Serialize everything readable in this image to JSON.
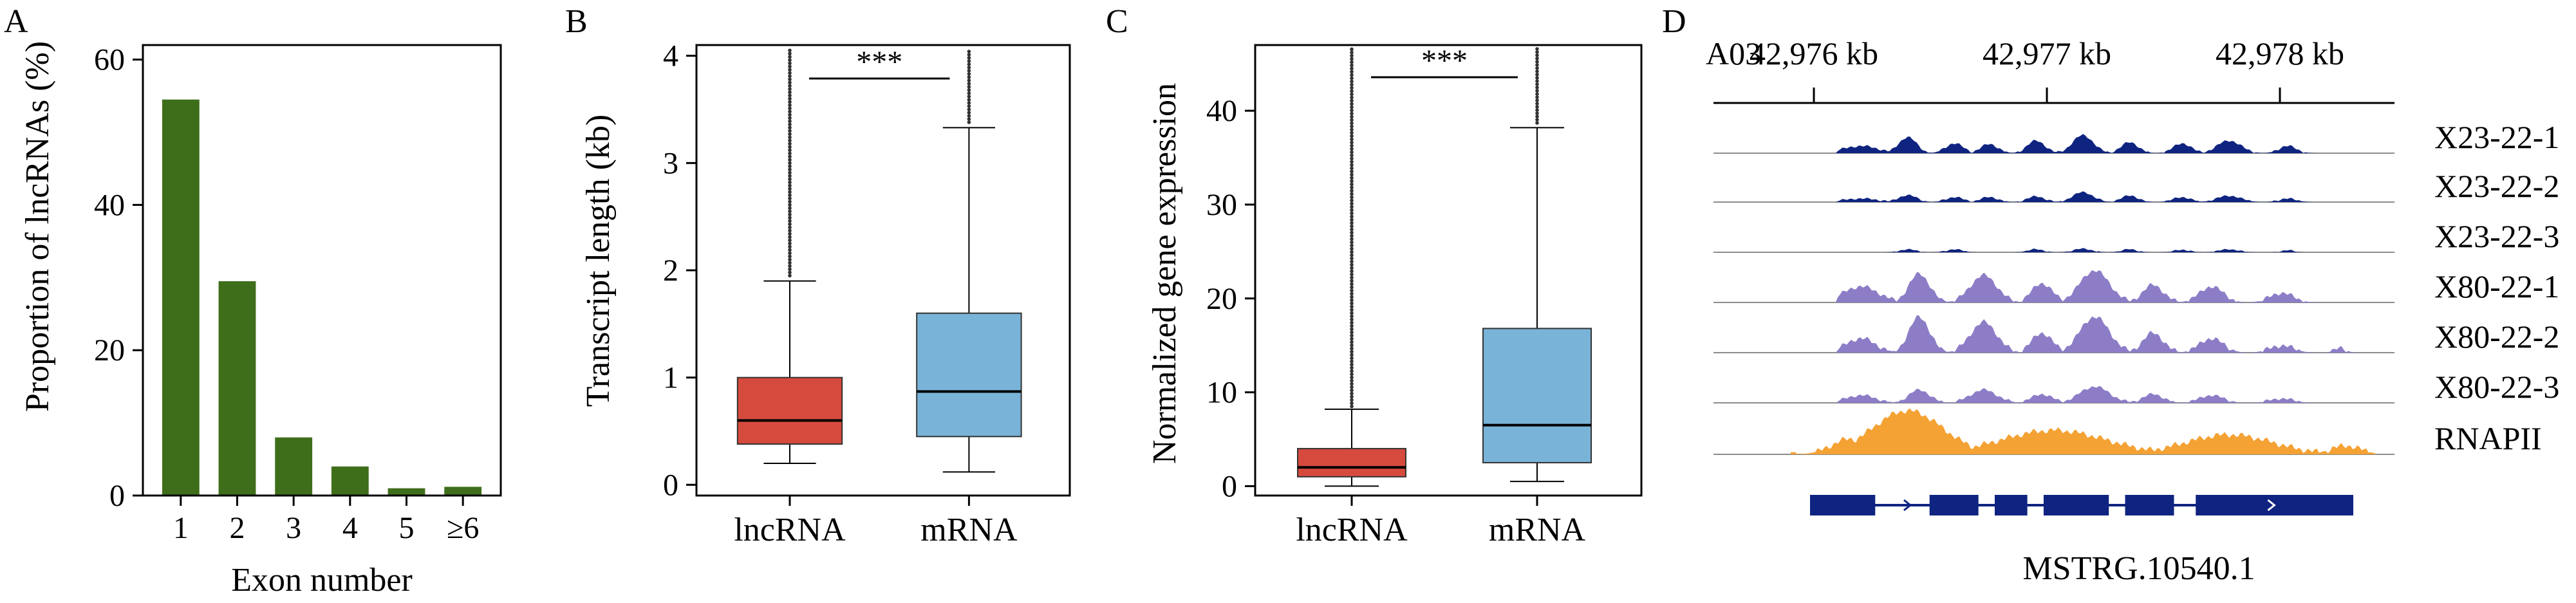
{
  "colors": {
    "bar_green": "#3f6e1b",
    "box_lncrna": "#d64a3d",
    "box_mrna": "#79b4d8",
    "track_dark": "#0f2480",
    "track_light": "#8d7dc7",
    "track_orange": "#f4a234",
    "gene_blue": "#0f2480",
    "baseline": "#8c8c8c"
  },
  "chart_data": [
    {
      "panel": "A",
      "type": "bar",
      "categories": [
        "1",
        "2",
        "3",
        "4",
        "5",
        "≥6"
      ],
      "values": [
        54.5,
        29.5,
        8.0,
        4.0,
        1.0,
        1.2
      ],
      "xlabel": "Exon number",
      "ylabel": "Proportion of lncRNAs (%)",
      "ylim": [
        0,
        62
      ],
      "yticks": [
        0,
        20,
        40,
        60
      ],
      "grid": false
    },
    {
      "panel": "B",
      "type": "box",
      "categories": [
        "lncRNA",
        "mRNA"
      ],
      "ylabel": "Transcript length (kb)",
      "ylim": [
        -0.1,
        4.1
      ],
      "yticks": [
        0,
        1,
        2,
        3,
        4
      ],
      "series": [
        {
          "category": "lncRNA",
          "whisker_low": 0.2,
          "q1": 0.38,
          "median": 0.6,
          "q3": 1.0,
          "whisker_high": 1.9,
          "outliers_from": 1.95,
          "outliers_to": 4.1,
          "color": "#d64a3d"
        },
        {
          "category": "mRNA",
          "whisker_low": 0.12,
          "q1": 0.45,
          "median": 0.87,
          "q3": 1.6,
          "whisker_high": 3.33,
          "outliers_from": 3.38,
          "outliers_to": 4.12,
          "color": "#79b4d8"
        }
      ],
      "significance": "***",
      "grid": false
    },
    {
      "panel": "C",
      "type": "box",
      "categories": [
        "lncRNA",
        "mRNA"
      ],
      "ylabel": "Normalized gene expression",
      "ylim": [
        -1,
        47
      ],
      "yticks": [
        0,
        10,
        20,
        30,
        40
      ],
      "series": [
        {
          "category": "lncRNA",
          "whisker_low": 0.0,
          "q1": 1.0,
          "median": 2.0,
          "q3": 4.0,
          "whisker_high": 8.2,
          "outliers_from": 8.5,
          "outliers_to": 47,
          "color": "#d64a3d"
        },
        {
          "category": "mRNA",
          "whisker_low": 0.5,
          "q1": 2.5,
          "median": 6.5,
          "q3": 16.8,
          "whisker_high": 38.2,
          "outliers_from": 38.7,
          "outliers_to": 47,
          "color": "#79b4d8"
        }
      ],
      "significance": "***",
      "grid": false
    },
    {
      "panel": "D",
      "type": "area",
      "chromosome": "A03",
      "coordinate_ticks": [
        "42,976 kb",
        "42,977 kb",
        "42,978 kb"
      ],
      "tracks": [
        {
          "name": "X23-22-1",
          "color": "#0f2480",
          "peaks": [
            [
              0.12,
              0.4,
              0.06
            ],
            [
              0.2,
              0.9,
              0.03
            ],
            [
              0.28,
              0.55,
              0.03
            ],
            [
              0.34,
              0.5,
              0.03
            ],
            [
              0.42,
              0.7,
              0.03
            ],
            [
              0.5,
              1.0,
              0.035
            ],
            [
              0.58,
              0.6,
              0.03
            ],
            [
              0.67,
              0.55,
              0.03
            ],
            [
              0.75,
              0.7,
              0.04
            ],
            [
              0.85,
              0.4,
              0.03
            ]
          ]
        },
        {
          "name": "X23-22-2",
          "color": "#0f2480",
          "peaks": [
            [
              0.12,
              0.25,
              0.06
            ],
            [
              0.2,
              0.5,
              0.03
            ],
            [
              0.28,
              0.35,
              0.03
            ],
            [
              0.34,
              0.35,
              0.03
            ],
            [
              0.42,
              0.4,
              0.03
            ],
            [
              0.5,
              0.7,
              0.035
            ],
            [
              0.58,
              0.45,
              0.03
            ],
            [
              0.67,
              0.35,
              0.03
            ],
            [
              0.75,
              0.45,
              0.04
            ],
            [
              0.85,
              0.25,
              0.03
            ]
          ]
        },
        {
          "name": "X23-22-3",
          "color": "#0f2480",
          "peaks": [
            [
              0.2,
              0.3,
              0.025
            ],
            [
              0.28,
              0.3,
              0.025
            ],
            [
              0.42,
              0.3,
              0.025
            ],
            [
              0.5,
              0.35,
              0.03
            ],
            [
              0.58,
              0.3,
              0.025
            ],
            [
              0.67,
              0.25,
              0.025
            ],
            [
              0.75,
              0.3,
              0.03
            ],
            [
              0.85,
              0.2,
              0.02
            ]
          ]
        },
        {
          "name": "X80-22-1",
          "color": "#8d7dc7",
          "peaks": [
            [
              0.12,
              0.5,
              0.06
            ],
            [
              0.22,
              0.9,
              0.035
            ],
            [
              0.33,
              0.85,
              0.045
            ],
            [
              0.43,
              0.6,
              0.035
            ],
            [
              0.52,
              1.0,
              0.05
            ],
            [
              0.62,
              0.55,
              0.035
            ],
            [
              0.72,
              0.5,
              0.04
            ],
            [
              0.84,
              0.3,
              0.04
            ]
          ]
        },
        {
          "name": "X80-22-2",
          "color": "#8d7dc7",
          "peaks": [
            [
              0.12,
              0.4,
              0.05
            ],
            [
              0.22,
              1.0,
              0.035
            ],
            [
              0.33,
              0.85,
              0.045
            ],
            [
              0.43,
              0.55,
              0.035
            ],
            [
              0.52,
              1.0,
              0.05
            ],
            [
              0.62,
              0.55,
              0.035
            ],
            [
              0.72,
              0.4,
              0.04
            ],
            [
              0.84,
              0.2,
              0.04
            ],
            [
              0.94,
              0.12,
              0.02
            ]
          ]
        },
        {
          "name": "X80-22-3",
          "color": "#8d7dc7",
          "peaks": [
            [
              0.12,
              0.35,
              0.05
            ],
            [
              0.22,
              0.6,
              0.035
            ],
            [
              0.33,
              0.6,
              0.045
            ],
            [
              0.43,
              0.4,
              0.035
            ],
            [
              0.52,
              0.75,
              0.05
            ],
            [
              0.62,
              0.4,
              0.035
            ],
            [
              0.72,
              0.35,
              0.04
            ],
            [
              0.84,
              0.2,
              0.04
            ]
          ]
        },
        {
          "name": "RNAPII",
          "color": "#f4a234",
          "peaks": [
            [
              0.2,
              1.0,
              0.12
            ],
            [
              0.1,
              0.35,
              0.06
            ],
            [
              0.45,
              0.55,
              0.18
            ],
            [
              0.75,
              0.45,
              0.15
            ],
            [
              0.95,
              0.2,
              0.05
            ]
          ]
        }
      ],
      "gene": {
        "name": "MSTRG.10540.1",
        "exons": [
          [
            0.0,
            0.12
          ],
          [
            0.22,
            0.31
          ],
          [
            0.34,
            0.4
          ],
          [
            0.43,
            0.55
          ],
          [
            0.58,
            0.67
          ],
          [
            0.71,
            1.0
          ]
        ],
        "strand_arrows": [
          0.18,
          0.85
        ]
      }
    }
  ],
  "panels": {
    "A": {
      "letter": "A"
    },
    "B": {
      "letter": "B"
    },
    "C": {
      "letter": "C"
    },
    "D": {
      "letter": "D"
    }
  }
}
